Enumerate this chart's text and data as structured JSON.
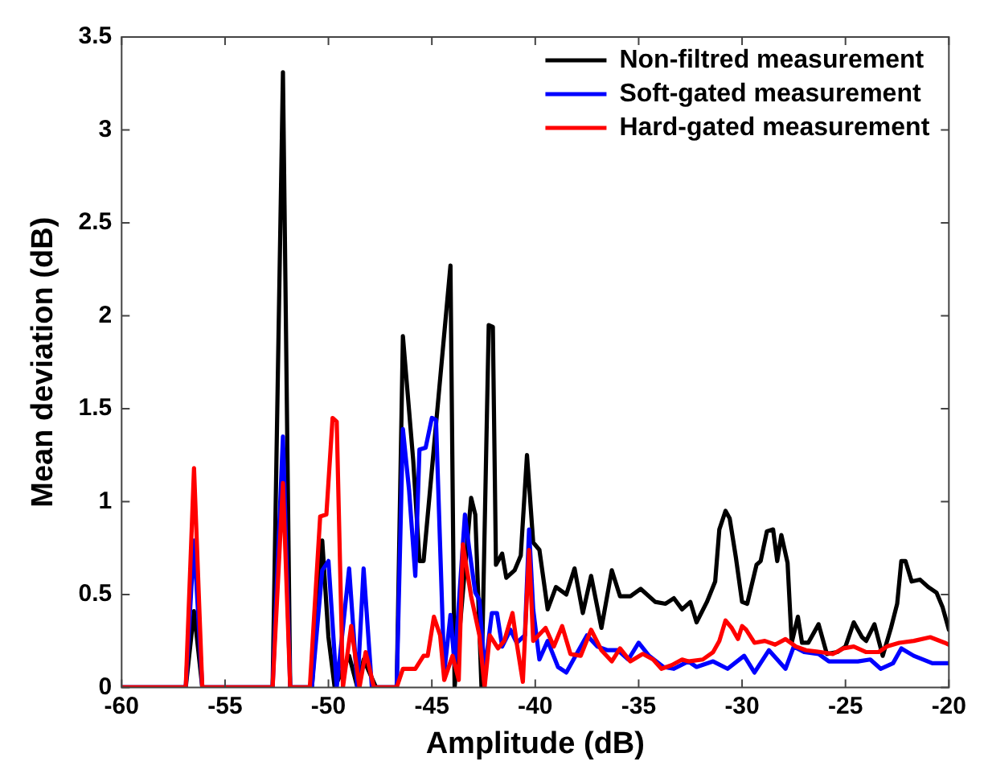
{
  "chart_data": {
    "type": "line",
    "xlabel": "Amplitude (dB)",
    "ylabel": "Mean deviation (dB)",
    "xlim": [
      -60,
      -20
    ],
    "xticks": [
      -60,
      -55,
      -50,
      -45,
      -40,
      -35,
      -30,
      -25,
      -20
    ],
    "ylim": [
      0,
      3.5
    ],
    "yticks": [
      0,
      0.5,
      1,
      1.5,
      2,
      2.5,
      3,
      3.5
    ],
    "grid": false,
    "legend": "top right",
    "marker": "none",
    "line_style": "solid",
    "series": [
      {
        "name": "Non-filtred measurement",
        "color": "#000000",
        "x": [
          -60,
          -56.9,
          -56.5,
          -56.1,
          -52.7,
          -52.2,
          -51.85,
          -50.8,
          -50.3,
          -50.0,
          -49.7,
          -49.0,
          -48.6,
          -48.3,
          -47.7,
          -46.7,
          -46.4,
          -45.9,
          -45.6,
          -45.4,
          -44.1,
          -43.9,
          -43.1,
          -42.9,
          -42.6,
          -42.25,
          -42.05,
          -41.9,
          -41.6,
          -41.4,
          -41.0,
          -40.7,
          -40.4,
          -40.1,
          -39.8,
          -39.4,
          -39.0,
          -38.5,
          -38.1,
          -37.7,
          -37.3,
          -36.8,
          -36.3,
          -35.9,
          -35.4,
          -34.9,
          -34.2,
          -33.7,
          -33.3,
          -32.9,
          -32.5,
          -32.2,
          -31.7,
          -31.3,
          -31.1,
          -30.8,
          -30.6,
          -30.3,
          -30.0,
          -29.75,
          -29.3,
          -29.1,
          -28.8,
          -28.5,
          -28.3,
          -28.1,
          -27.8,
          -27.6,
          -27.3,
          -27.1,
          -26.8,
          -26.3,
          -25.9,
          -25.4,
          -25.0,
          -24.6,
          -24.2,
          -24.0,
          -23.6,
          -23.2,
          -22.8,
          -22.5,
          -22.3,
          -22.1,
          -21.8,
          -21.4,
          -21.0,
          -20.6,
          -20.3,
          -20.0
        ],
        "values": [
          0,
          0,
          0.41,
          0,
          0,
          3.31,
          0,
          0,
          0.79,
          0.27,
          0,
          0.17,
          0,
          0.15,
          0,
          0,
          1.89,
          1.22,
          0.68,
          0.68,
          2.27,
          0,
          1.02,
          0.93,
          0,
          1.95,
          1.94,
          0.66,
          0.72,
          0.59,
          0.63,
          0.71,
          1.25,
          0.78,
          0.74,
          0.42,
          0.54,
          0.5,
          0.64,
          0.4,
          0.6,
          0.32,
          0.63,
          0.49,
          0.49,
          0.53,
          0.46,
          0.45,
          0.48,
          0.42,
          0.46,
          0.35,
          0.46,
          0.57,
          0.85,
          0.95,
          0.91,
          0.7,
          0.46,
          0.45,
          0.66,
          0.68,
          0.84,
          0.85,
          0.68,
          0.82,
          0.67,
          0.24,
          0.38,
          0.24,
          0.24,
          0.34,
          0.18,
          0.19,
          0.22,
          0.35,
          0.27,
          0.25,
          0.34,
          0.17,
          0.32,
          0.45,
          0.68,
          0.68,
          0.57,
          0.58,
          0.54,
          0.51,
          0.43,
          0.31
        ]
      },
      {
        "name": "Soft-gated measurement",
        "color": "#0000ff",
        "x": [
          -60,
          -56.9,
          -56.5,
          -56.1,
          -52.7,
          -52.2,
          -51.85,
          -50.8,
          -50.3,
          -50.0,
          -49.6,
          -49.0,
          -48.6,
          -48.3,
          -47.9,
          -46.7,
          -46.4,
          -46.1,
          -45.8,
          -45.6,
          -45.3,
          -45.0,
          -44.8,
          -44.4,
          -44.1,
          -43.9,
          -43.4,
          -43.2,
          -42.9,
          -42.7,
          -42.45,
          -42.1,
          -41.85,
          -41.6,
          -41.2,
          -40.9,
          -40.5,
          -40.3,
          -40.1,
          -39.8,
          -39.4,
          -38.9,
          -38.5,
          -38.0,
          -37.5,
          -37.0,
          -36.5,
          -36.0,
          -35.5,
          -35.0,
          -34.5,
          -33.8,
          -33.3,
          -32.6,
          -32.2,
          -31.4,
          -30.7,
          -29.9,
          -29.4,
          -28.7,
          -27.9,
          -27.5,
          -27.0,
          -26.3,
          -25.8,
          -25.2,
          -24.4,
          -23.8,
          -23.3,
          -22.7,
          -22.3,
          -21.7,
          -20.8,
          -20.0
        ],
        "values": [
          0,
          0,
          0.79,
          0,
          0,
          1.35,
          0,
          0,
          0.63,
          0.68,
          0,
          0.64,
          0,
          0.64,
          0,
          0,
          1.39,
          1.06,
          0.6,
          1.28,
          1.29,
          1.45,
          1.44,
          0.08,
          0.39,
          0.12,
          0.93,
          0.75,
          0.51,
          0.47,
          0.08,
          0.4,
          0.4,
          0.22,
          0.31,
          0.24,
          0.28,
          0.85,
          0.42,
          0.15,
          0.25,
          0.11,
          0.08,
          0.18,
          0.28,
          0.22,
          0.2,
          0.2,
          0.15,
          0.24,
          0.17,
          0.11,
          0.1,
          0.14,
          0.11,
          0.14,
          0.1,
          0.17,
          0.08,
          0.2,
          0.1,
          0.22,
          0.19,
          0.18,
          0.14,
          0.14,
          0.14,
          0.15,
          0.1,
          0.13,
          0.21,
          0.17,
          0.13,
          0.13
        ]
      },
      {
        "name": "Hard-gated measurement",
        "color": "#ff0000",
        "x": [
          -60,
          -56.9,
          -56.5,
          -56.1,
          -52.7,
          -52.2,
          -51.85,
          -50.9,
          -50.4,
          -50.1,
          -49.8,
          -49.6,
          -49.3,
          -48.9,
          -48.5,
          -48.2,
          -47.8,
          -46.7,
          -46.4,
          -46.2,
          -45.8,
          -45.4,
          -45.2,
          -44.9,
          -44.6,
          -44.4,
          -44.0,
          -43.7,
          -43.5,
          -43.1,
          -42.7,
          -42.45,
          -42.2,
          -41.8,
          -41.5,
          -41.1,
          -40.9,
          -40.6,
          -40.3,
          -40.1,
          -39.5,
          -39.1,
          -38.7,
          -38.3,
          -37.8,
          -37.3,
          -36.8,
          -36.3,
          -35.9,
          -35.4,
          -34.8,
          -34.3,
          -33.9,
          -33.4,
          -32.9,
          -32.6,
          -31.9,
          -31.4,
          -31.1,
          -30.8,
          -30.5,
          -30.2,
          -30.0,
          -29.8,
          -29.4,
          -28.9,
          -28.4,
          -27.9,
          -27.4,
          -26.9,
          -26.2,
          -25.6,
          -25.1,
          -24.6,
          -24.0,
          -23.4,
          -23.0,
          -22.4,
          -21.7,
          -20.9,
          -20.2,
          -20.0
        ],
        "values": [
          0,
          0,
          1.18,
          0,
          0,
          1.1,
          0,
          0,
          0.92,
          0.93,
          1.45,
          1.43,
          0,
          0.33,
          0,
          0.19,
          0,
          0,
          0.1,
          0.1,
          0.1,
          0.17,
          0.17,
          0.38,
          0.28,
          0.04,
          0.17,
          0.04,
          0.77,
          0.49,
          0.28,
          0,
          0.28,
          0.21,
          0.25,
          0.4,
          0.24,
          0.03,
          0.74,
          0.25,
          0.32,
          0.22,
          0.33,
          0.18,
          0.17,
          0.31,
          0.2,
          0.14,
          0.21,
          0.14,
          0.18,
          0.15,
          0.1,
          0.12,
          0.15,
          0.14,
          0.15,
          0.19,
          0.25,
          0.36,
          0.32,
          0.26,
          0.33,
          0.31,
          0.24,
          0.25,
          0.23,
          0.26,
          0.22,
          0.2,
          0.19,
          0.18,
          0.21,
          0.22,
          0.19,
          0.19,
          0.22,
          0.24,
          0.25,
          0.27,
          0.24,
          0.23
        ]
      }
    ]
  }
}
